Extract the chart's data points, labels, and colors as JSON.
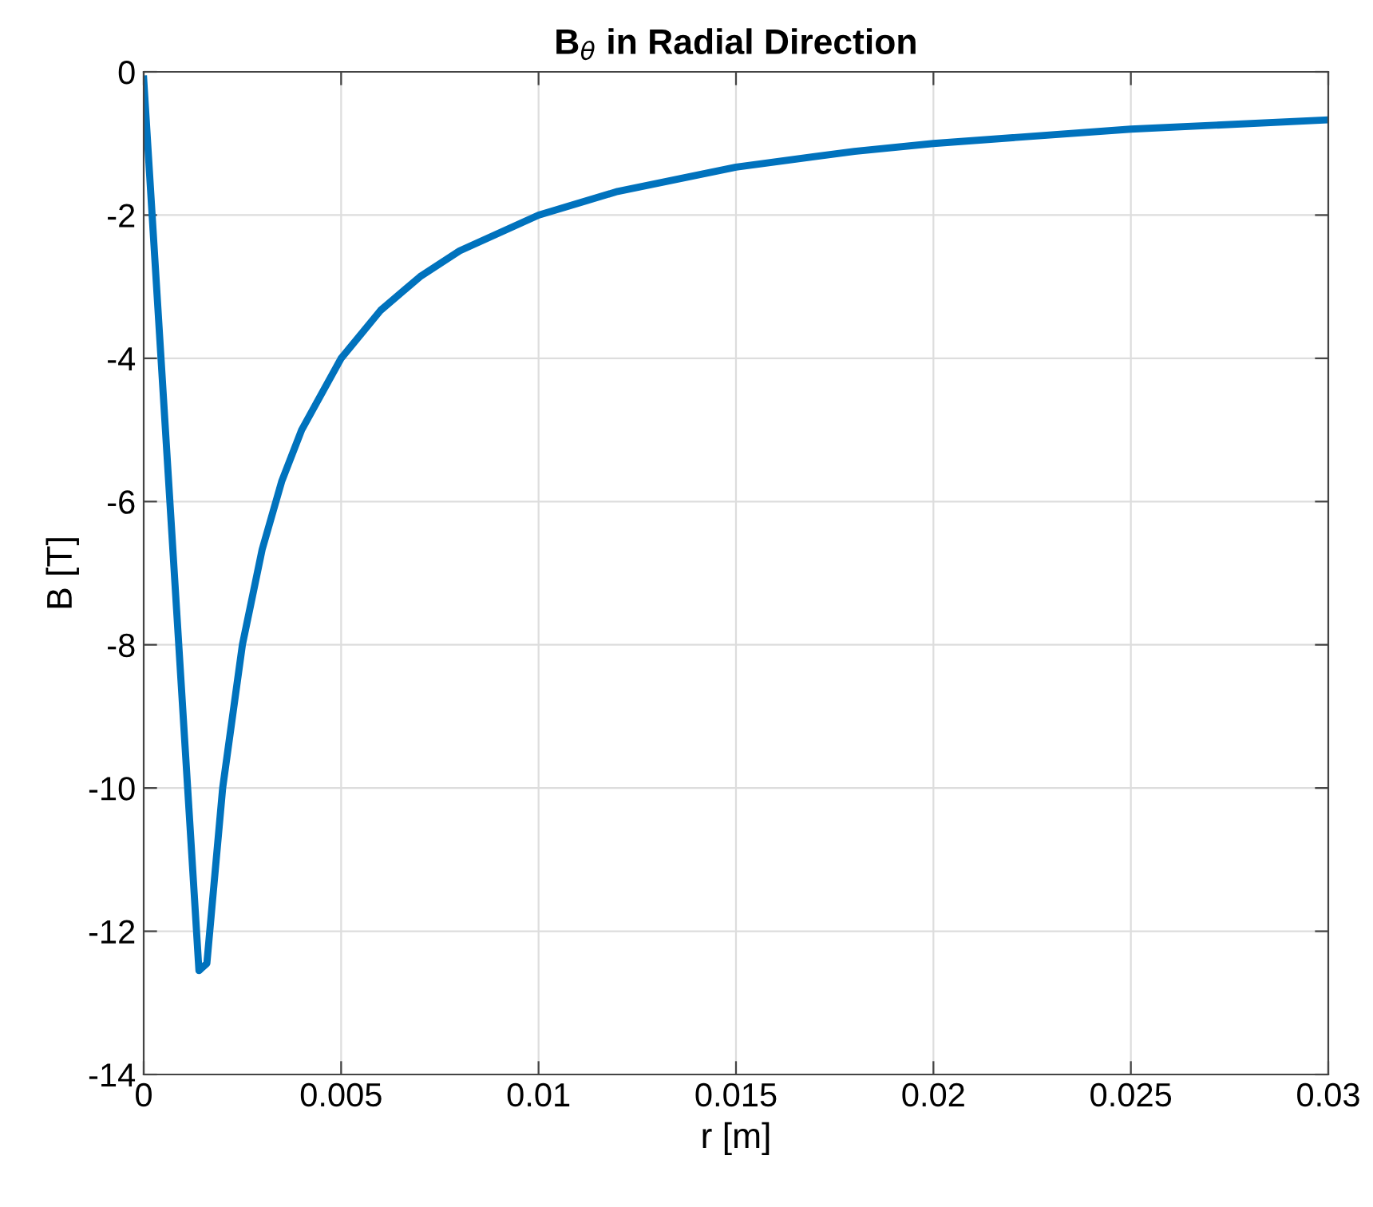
{
  "chart_data": {
    "type": "line",
    "title": "B$_{θ}$ in Radial Direction",
    "xlabel": "r [m]",
    "ylabel": "B [T]",
    "x": [
      0,
      0.0014,
      0.0016,
      0.002,
      0.0025,
      0.003,
      0.0035,
      0.004,
      0.005,
      0.006,
      0.007,
      0.008,
      0.01,
      0.012,
      0.015,
      0.018,
      0.02,
      0.025,
      0.03
    ],
    "series": [
      {
        "color": "#0072bd",
        "values": [
          -0.1,
          -12.55,
          -12.45,
          -10,
          -8,
          -6.67,
          -5.71,
          -5,
          -4,
          -3.33,
          -2.86,
          -2.5,
          -2,
          -1.67,
          -1.33,
          -1.11,
          -1,
          -0.8,
          -0.67
        ]
      }
    ],
    "xlim": [
      0,
      0.03
    ],
    "ylim": [
      -14,
      0
    ],
    "xticks": [
      0,
      0.005,
      0.01,
      0.015,
      0.02,
      0.025,
      0.03
    ],
    "yticks": [
      -14,
      -12,
      -10,
      -8,
      -6,
      -4,
      -2,
      0
    ],
    "grid": true,
    "marker": "none",
    "line_style": "solid"
  }
}
